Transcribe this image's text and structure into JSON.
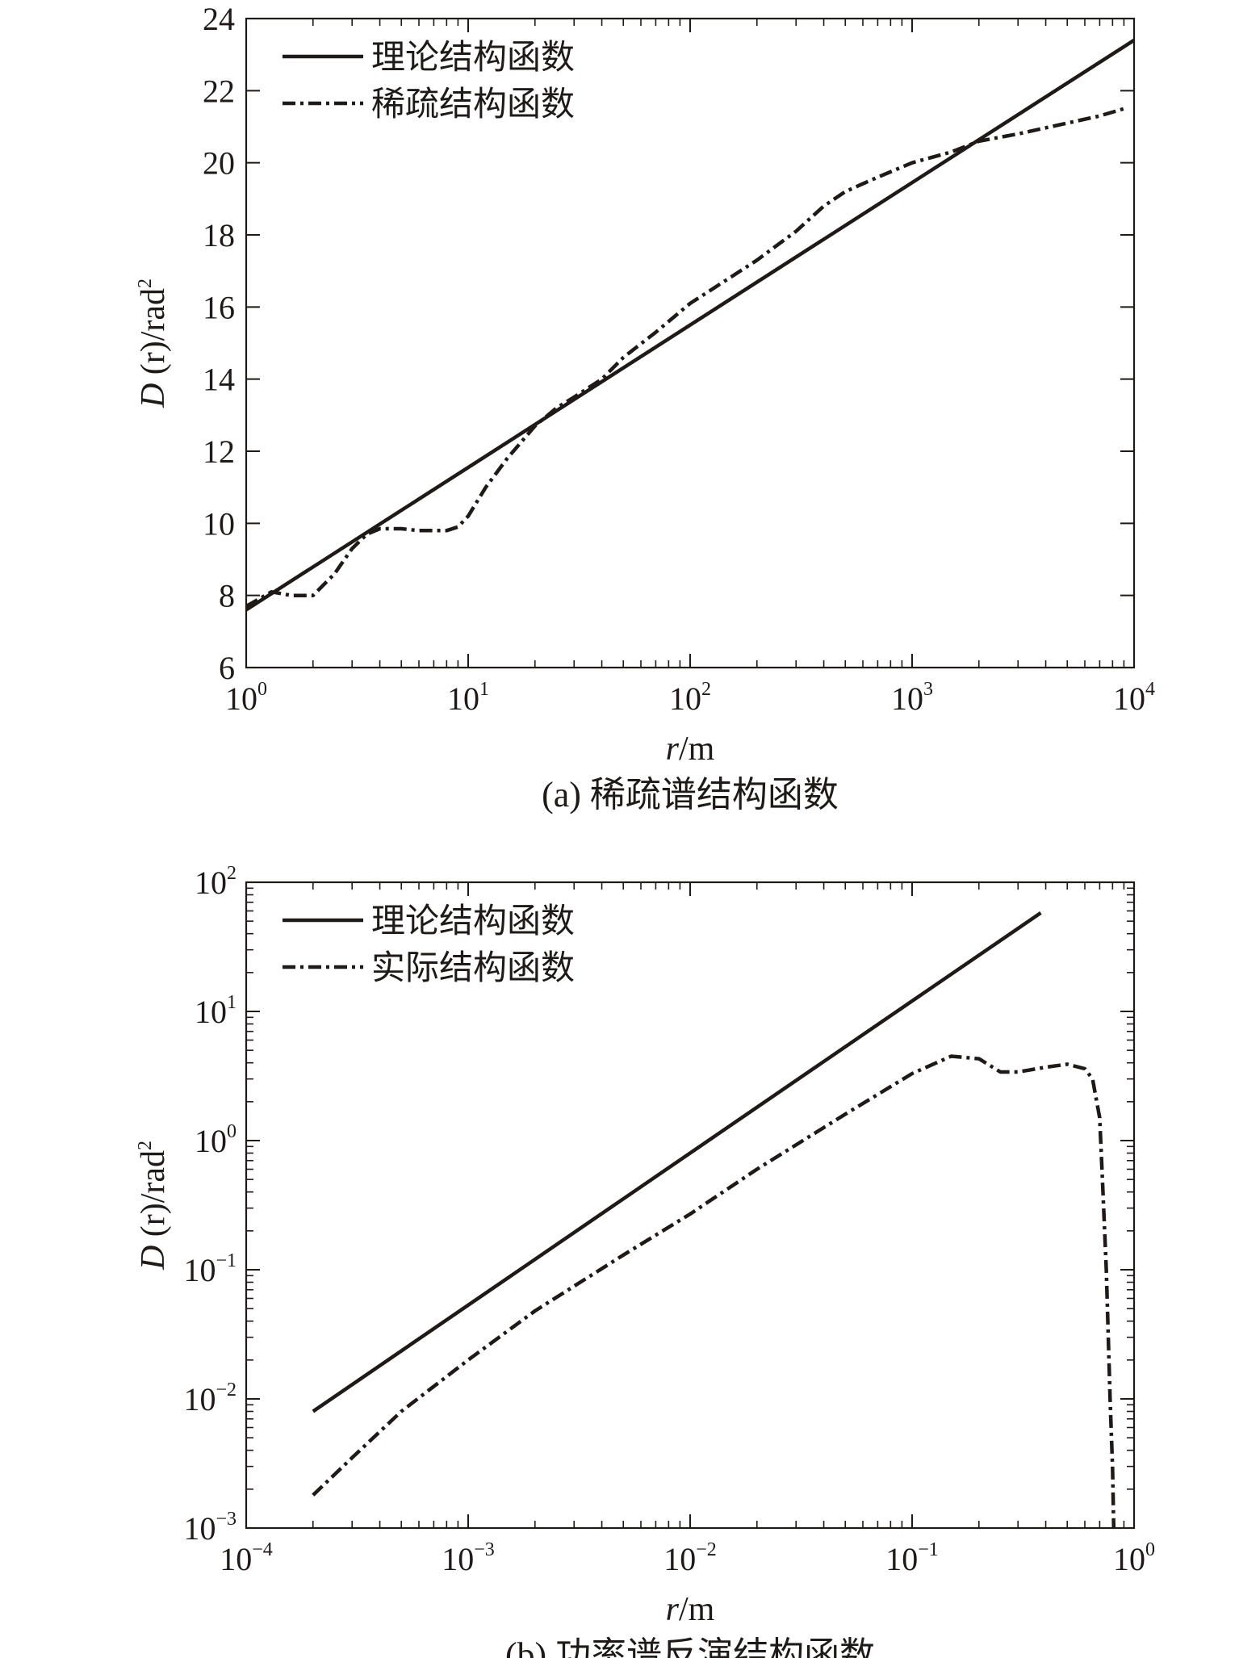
{
  "chart_data": [
    {
      "type": "line",
      "caption": "(a) 稀疏谱结构函数",
      "xlabel_italic": "r",
      "xlabel_rest": "/m",
      "ylabel_italic": "D",
      "ylabel_rest": " (r)/rad",
      "ylabel_sup": "2",
      "xscale": "log",
      "yscale": "linear",
      "xlim": [
        1,
        10000
      ],
      "ylim": [
        6,
        24
      ],
      "xticks": [
        {
          "value": 1,
          "base": "10",
          "exp": "0"
        },
        {
          "value": 10,
          "base": "10",
          "exp": "1"
        },
        {
          "value": 100,
          "base": "10",
          "exp": "2"
        },
        {
          "value": 1000,
          "base": "10",
          "exp": "3"
        },
        {
          "value": 10000,
          "base": "10",
          "exp": "4"
        }
      ],
      "yticks": [
        "6",
        "8",
        "10",
        "12",
        "14",
        "16",
        "18",
        "20",
        "22",
        "24"
      ],
      "legend_position": "top-left",
      "series": [
        {
          "name": "理论结构函数",
          "style": "solid",
          "x": [
            1,
            10000
          ],
          "y": [
            7.6,
            23.4
          ]
        },
        {
          "name": "稀疏结构函数",
          "style": "dash-dot",
          "x": [
            1,
            1.3,
            1.6,
            2,
            2.5,
            3,
            3.5,
            4,
            5,
            6,
            7,
            8,
            9,
            10,
            12,
            15,
            20,
            25,
            30,
            40,
            50,
            70,
            100,
            150,
            200,
            300,
            400,
            500,
            700,
            1000,
            1500,
            2000,
            3000,
            5000,
            7000,
            9000
          ],
          "y": [
            7.7,
            8.1,
            8.0,
            8.0,
            8.6,
            9.3,
            9.7,
            9.85,
            9.85,
            9.8,
            9.8,
            9.8,
            9.9,
            10.2,
            11.0,
            11.8,
            12.7,
            13.2,
            13.5,
            14.0,
            14.6,
            15.3,
            16.1,
            16.8,
            17.3,
            18.1,
            18.8,
            19.2,
            19.6,
            20.0,
            20.3,
            20.6,
            20.8,
            21.1,
            21.3,
            21.5
          ]
        }
      ]
    },
    {
      "type": "line",
      "caption": "(b) 功率谱反演结构函数",
      "xlabel_italic": "r",
      "xlabel_rest": "/m",
      "ylabel_italic": "D",
      "ylabel_rest": " (r)/rad",
      "ylabel_sup": "2",
      "xscale": "log",
      "yscale": "log",
      "xlim": [
        0.0001,
        1
      ],
      "ylim": [
        0.001,
        100
      ],
      "xticks": [
        {
          "value": 0.0001,
          "base": "10",
          "exp": "−4"
        },
        {
          "value": 0.001,
          "base": "10",
          "exp": "−3"
        },
        {
          "value": 0.01,
          "base": "10",
          "exp": "−2"
        },
        {
          "value": 0.1,
          "base": "10",
          "exp": "−1"
        },
        {
          "value": 1,
          "base": "10",
          "exp": "0"
        }
      ],
      "yticks": [
        {
          "value": 0.001,
          "base": "10",
          "exp": "−3"
        },
        {
          "value": 0.01,
          "base": "10",
          "exp": "−2"
        },
        {
          "value": 0.1,
          "base": "10",
          "exp": "−1"
        },
        {
          "value": 1,
          "base": "10",
          "exp": "0"
        },
        {
          "value": 10,
          "base": "10",
          "exp": "1"
        },
        {
          "value": 100,
          "base": "10",
          "exp": "2"
        }
      ],
      "legend_position": "top-left",
      "series": [
        {
          "name": "理论结构函数",
          "style": "solid",
          "x": [
            0.0002,
            0.38
          ],
          "y": [
            0.008,
            58
          ]
        },
        {
          "name": "实际结构函数",
          "style": "dash-dot",
          "x": [
            0.0002,
            0.0003,
            0.0005,
            0.001,
            0.002,
            0.005,
            0.01,
            0.02,
            0.05,
            0.1,
            0.15,
            0.2,
            0.25,
            0.3,
            0.4,
            0.5,
            0.6,
            0.65,
            0.7,
            0.72,
            0.75,
            0.78,
            0.8,
            0.81
          ],
          "y": [
            0.0018,
            0.0035,
            0.008,
            0.02,
            0.048,
            0.13,
            0.27,
            0.6,
            1.6,
            3.3,
            4.5,
            4.3,
            3.4,
            3.4,
            3.7,
            3.9,
            3.6,
            3.0,
            1.5,
            0.5,
            0.1,
            0.01,
            0.003,
            0.001
          ]
        }
      ]
    }
  ]
}
